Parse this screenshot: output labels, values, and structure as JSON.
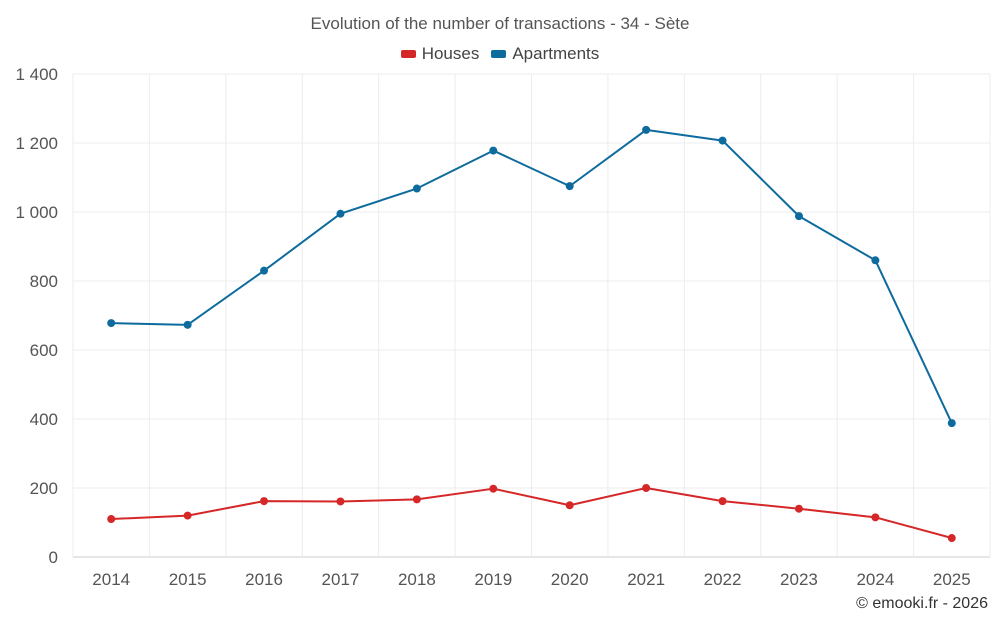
{
  "chart_data": {
    "type": "line",
    "title": "Evolution of the number of transactions - 34 - Sète",
    "categories": [
      "2014",
      "2015",
      "2016",
      "2017",
      "2018",
      "2019",
      "2020",
      "2021",
      "2022",
      "2023",
      "2024",
      "2025"
    ],
    "series": [
      {
        "name": "Houses",
        "color": "#d62728",
        "values": [
          110,
          120,
          162,
          161,
          167,
          198,
          150,
          200,
          162,
          140,
          115,
          55
        ]
      },
      {
        "name": "Apartments",
        "color": "#0e6b9e",
        "values": [
          678,
          673,
          830,
          995,
          1068,
          1178,
          1075,
          1238,
          1207,
          988,
          860,
          388
        ]
      }
    ],
    "yticks": [
      "0",
      "200",
      "400",
      "600",
      "800",
      "1 000",
      "1 200",
      "1 400"
    ],
    "ylim": [
      0,
      1400
    ],
    "xlabel": "",
    "ylabel": "",
    "legend": "top-center"
  },
  "credit": "© emooki.fr - 2026"
}
